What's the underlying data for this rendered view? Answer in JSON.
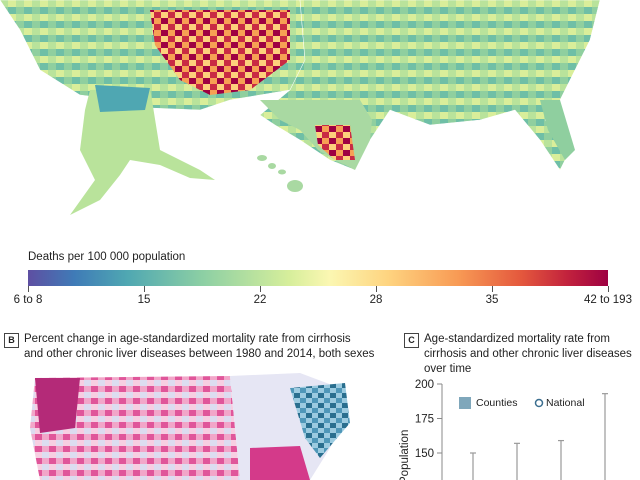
{
  "legend": {
    "title": "Deaths per 100 000 population",
    "ticks": [
      {
        "label": "6 to 8",
        "pos": 0
      },
      {
        "label": "15",
        "pos": 0.2
      },
      {
        "label": "22",
        "pos": 0.4
      },
      {
        "label": "28",
        "pos": 0.6
      },
      {
        "label": "35",
        "pos": 0.8
      },
      {
        "label": "42 to 193",
        "pos": 1
      }
    ]
  },
  "panel_b": {
    "letter": "B",
    "title_line1": "Percent change in age-standardized mortality rate from cirrhosis",
    "title_line2": "and other chronic liver diseases between 1980 and 2014, both sexes"
  },
  "panel_c": {
    "letter": "C",
    "title_line1": "Age-standardized mortality rate from",
    "title_line2": "cirrhosis and other chronic liver diseases",
    "title_line3": "over time",
    "ylabel": "Population",
    "legend_counties": "Counties",
    "legend_national": "National",
    "counties_color": "#7fa7bb",
    "national_color": "#3b6e8f"
  },
  "chart_data": {
    "type": "bar",
    "ylim": [
      125,
      200
    ],
    "yticks": [
      "200",
      "175",
      "150"
    ],
    "ytick_values": [
      200,
      175,
      150
    ],
    "county_max_values": [
      150,
      157,
      159,
      193
    ]
  }
}
